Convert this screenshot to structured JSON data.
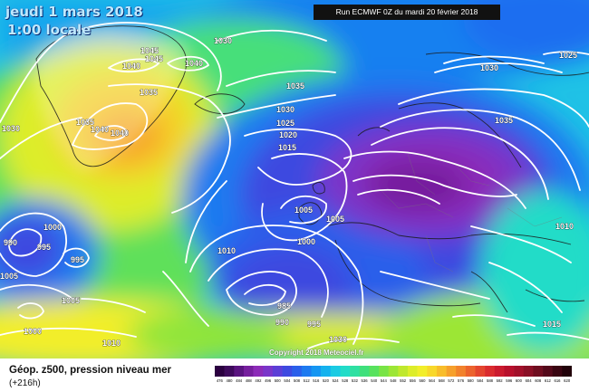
{
  "title": {
    "date": "jeudi 1 mars 2018",
    "time": "1:00 locale"
  },
  "run": "Run ECMWF 0Z du mardi 20 février 2018",
  "copyright": "Copyright 2018 Meteociel.fr",
  "product": {
    "name": "Géop. z500, pression niveau mer",
    "lead": "(+216h)"
  },
  "isobar_labels": [
    "1045",
    "1045",
    "1040",
    "1030",
    "1040",
    "1035",
    "1035",
    "1040",
    "1030",
    "1035",
    "1030",
    "1025",
    "1020",
    "1015",
    "1005",
    "1005",
    "1000",
    "1000",
    "990",
    "995",
    "995",
    "1005",
    "1010",
    "985",
    "990",
    "995",
    "1000",
    "1010",
    "1035",
    "1030",
    "1025",
    "1010",
    "1015",
    "1005",
    "1040",
    "1030"
  ],
  "legend": {
    "labels": [
      "476",
      "480",
      "484",
      "488",
      "492",
      "496",
      "500",
      "504",
      "508",
      "512",
      "516",
      "520",
      "524",
      "528",
      "532",
      "536",
      "540",
      "544",
      "548",
      "552",
      "556",
      "560",
      "564",
      "568",
      "572",
      "576",
      "580",
      "584",
      "588",
      "592",
      "596",
      "600",
      "604",
      "608",
      "612",
      "616",
      "620"
    ],
    "colors": [
      "#2b0040",
      "#3e0a5c",
      "#5a1480",
      "#761f9e",
      "#8c2bb8",
      "#7a35c9",
      "#5c3ed6",
      "#3e49e0",
      "#2a5fea",
      "#1d7af0",
      "#1596f2",
      "#14b2ee",
      "#1acbe3",
      "#22dcc8",
      "#2ee0a2",
      "#3fe07c",
      "#58e25e",
      "#78e446",
      "#9ce636",
      "#bfe82d",
      "#dded2a",
      "#f2ee2a",
      "#f8d82a",
      "#f8bd2a",
      "#f6a02b",
      "#f2822c",
      "#ec632d",
      "#e4452e",
      "#da2b2e",
      "#cb1a2e",
      "#b8102c",
      "#a2102a",
      "#8a1026",
      "#6f0e20",
      "#54091a",
      "#3a0512",
      "#22020a"
    ]
  }
}
